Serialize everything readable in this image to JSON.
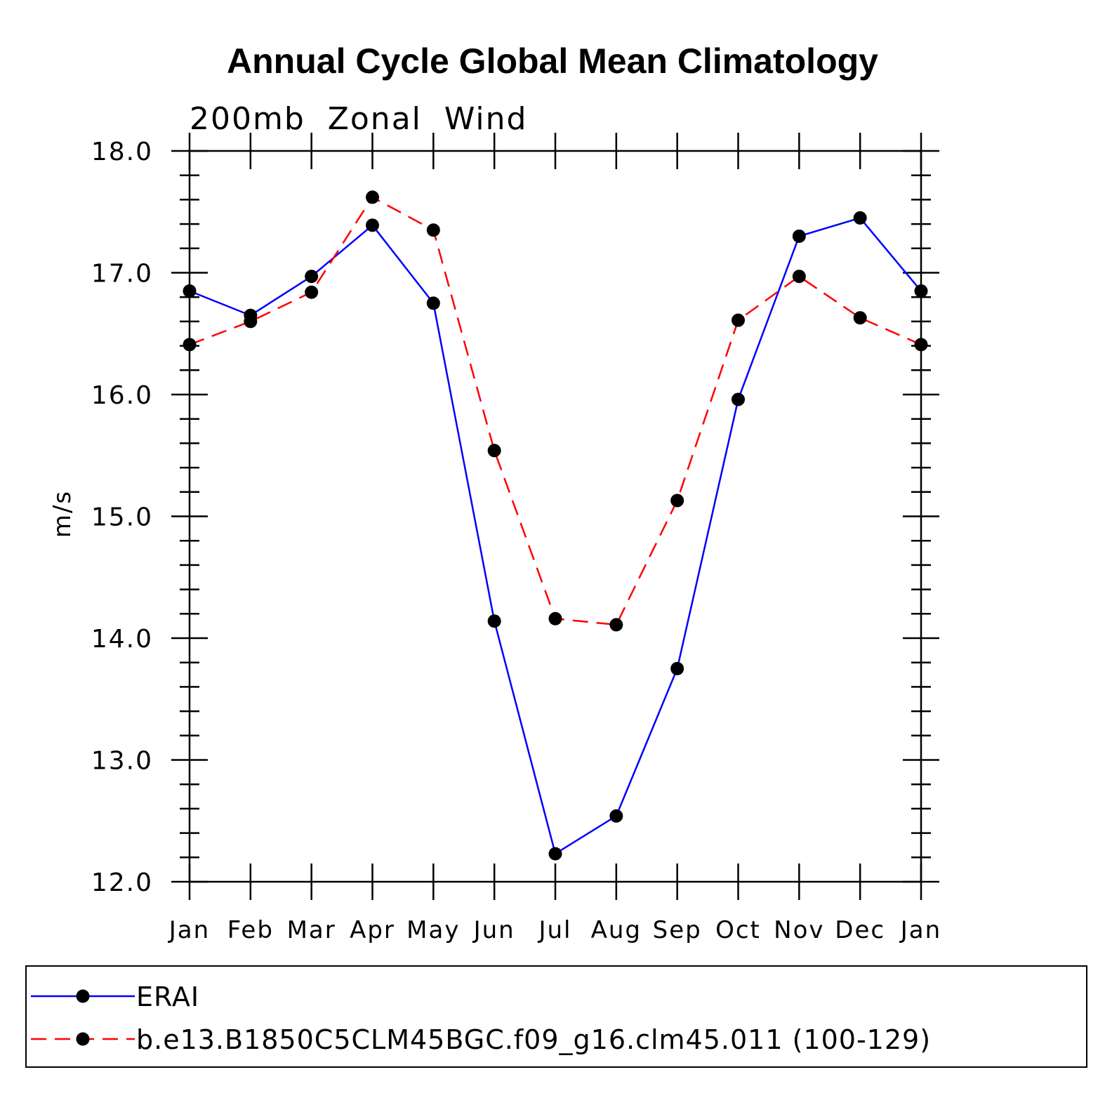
{
  "chart_data": {
    "type": "line",
    "title": "Annual Cycle Global Mean Climatology",
    "subtitle": "200mb  Zonal  Wind",
    "ylabel": "m/s",
    "xlabel": "",
    "ylim": [
      12.0,
      18.0
    ],
    "yticks": [
      "12.0",
      "13.0",
      "14.0",
      "15.0",
      "16.0",
      "17.0",
      "18.0"
    ],
    "categories": [
      "Jan",
      "Feb",
      "Mar",
      "Apr",
      "May",
      "Jun",
      "Jul",
      "Aug",
      "Sep",
      "Oct",
      "Nov",
      "Dec",
      "Jan"
    ],
    "grid": false,
    "legend_position": "bottom",
    "series": [
      {
        "name": "ERAI",
        "color": "#0000ff",
        "dash": "solid",
        "values": [
          16.85,
          16.65,
          16.97,
          17.39,
          16.75,
          14.14,
          12.23,
          12.54,
          13.75,
          15.96,
          17.3,
          17.45,
          16.85
        ]
      },
      {
        "name": "b.e13.B1850C5CLM45BGC.f09_g16.clm45.011 (100-129)",
        "color": "#ff0000",
        "dash": "dashed",
        "values": [
          16.41,
          16.6,
          16.84,
          17.62,
          17.35,
          15.54,
          14.16,
          14.11,
          15.13,
          16.61,
          16.97,
          16.63,
          16.41
        ]
      }
    ]
  }
}
